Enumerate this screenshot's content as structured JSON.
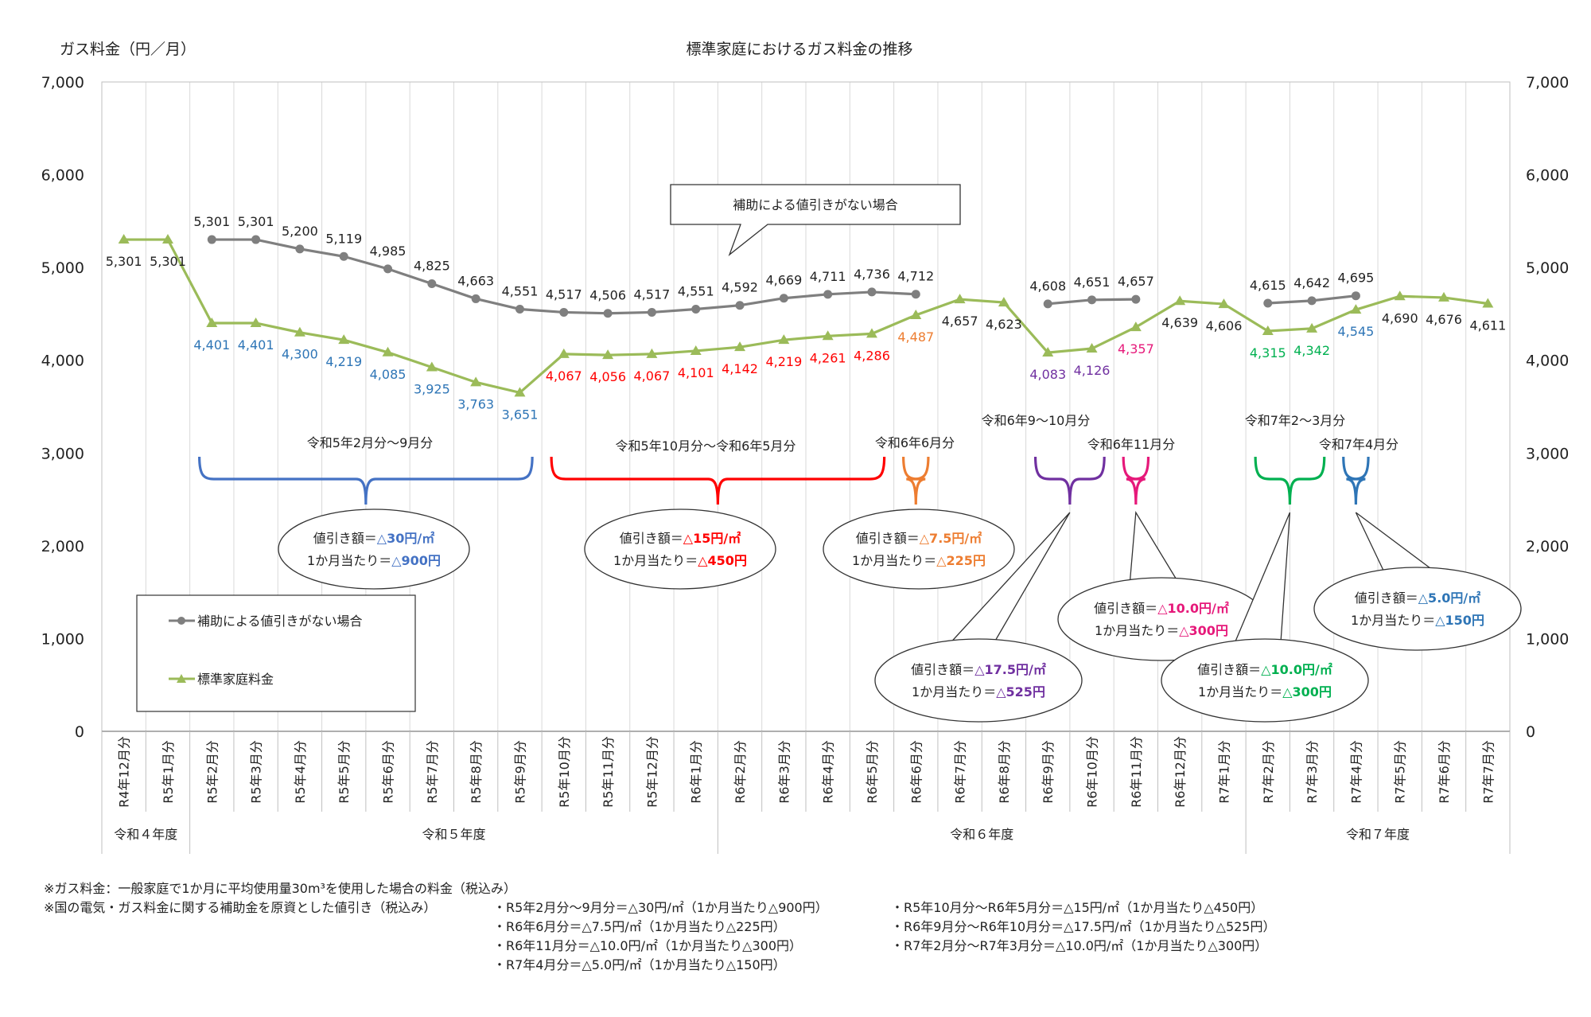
{
  "chart_data": {
    "type": "line",
    "title": "標準家庭におけるガス料金の推移",
    "ylabel": "ガス料金（円／月）",
    "ylim": [
      0,
      7000
    ],
    "yticks": [
      "0",
      "1,000",
      "2,000",
      "3,000",
      "4,000",
      "5,000",
      "6,000",
      "7,000"
    ],
    "categories": [
      "R4年12月分",
      "R5年1月分",
      "R5年2月分",
      "R5年3月分",
      "R5年4月分",
      "R5年5月分",
      "R5年6月分",
      "R5年7月分",
      "R5年8月分",
      "R5年9月分",
      "R5年10月分",
      "R5年11月分",
      "R5年12月分",
      "R6年1月分",
      "R6年2月分",
      "R6年3月分",
      "R6年4月分",
      "R6年5月分",
      "R6年6月分",
      "R6年7月分",
      "R6年8月分",
      "R6年9月分",
      "R6年10月分",
      "R6年11月分",
      "R6年12月分",
      "R7年1月分",
      "R7年2月分",
      "R7年3月分",
      "R7年4月分",
      "R7年5月分",
      "R7年6月分",
      "R7年7月分"
    ],
    "fiscal_years": [
      {
        "label": "令和４年度",
        "start": 0,
        "end": 1
      },
      {
        "label": "令和５年度",
        "start": 2,
        "end": 13
      },
      {
        "label": "令和６年度",
        "start": 14,
        "end": 25
      },
      {
        "label": "令和７年度",
        "start": 26,
        "end": 31
      }
    ],
    "series": [
      {
        "name": "補助による値引きがない場合",
        "color": "#7f7f7f",
        "values": [
          null,
          null,
          5301,
          5301,
          5200,
          5119,
          4985,
          4825,
          4663,
          4551,
          4517,
          4506,
          4517,
          4551,
          4592,
          4669,
          4711,
          4736,
          4712,
          null,
          null,
          4608,
          4651,
          4657,
          null,
          null,
          4615,
          4642,
          4695,
          null,
          null,
          null
        ],
        "labels": [
          null,
          null,
          "5,301",
          "5,301",
          "5,200",
          "5,119",
          "4,985",
          "4,825",
          "4,663",
          "4,551",
          "4,517",
          "4,506",
          "4,517",
          "4,551",
          "4,592",
          "4,669",
          "4,711",
          "4,736",
          "4,712",
          null,
          null,
          "4,608",
          "4,651",
          "4,657",
          null,
          null,
          "4,615",
          "4,642",
          "4,695",
          null,
          null,
          null
        ]
      },
      {
        "name": "標準家庭料金",
        "color": "#9bbb59",
        "values": [
          5301,
          5301,
          4401,
          4401,
          4300,
          4219,
          4085,
          3925,
          3763,
          3651,
          4067,
          4056,
          4067,
          4101,
          4142,
          4219,
          4261,
          4286,
          4487,
          4657,
          4623,
          4083,
          4126,
          4357,
          4639,
          4606,
          4315,
          4342,
          4545,
          4690,
          4676,
          4611
        ],
        "labels": [
          "5,301",
          "5,301",
          "4,401",
          "4,401",
          "4,300",
          "4,219",
          "4,085",
          "3,925",
          "3,763",
          "3,651",
          "4,067",
          "4,056",
          "4,067",
          "4,101",
          "4,142",
          "4,219",
          "4,261",
          "4,286",
          "4,487",
          "4,657",
          "4,623",
          "4,083",
          "4,126",
          "4,357",
          "4,639",
          "4,606",
          "4,315",
          "4,342",
          "4,545",
          "4,690",
          "4,676",
          "4,611"
        ],
        "label_colors": [
          "#222",
          "#222",
          "#2e75b6",
          "#2e75b6",
          "#2e75b6",
          "#2e75b6",
          "#2e75b6",
          "#2e75b6",
          "#2e75b6",
          "#2e75b6",
          "#ff0000",
          "#ff0000",
          "#ff0000",
          "#ff0000",
          "#ff0000",
          "#ff0000",
          "#ff0000",
          "#ff0000",
          "#ed7d31",
          "#222",
          "#222",
          "#7030a0",
          "#7030a0",
          "#e6197a",
          "#222",
          "#222",
          "#00b050",
          "#00b050",
          "#2e75b6",
          "#222",
          "#222",
          "#222"
        ]
      }
    ],
    "callout_no_subsidy": "補助による値引きがない場合",
    "periods": [
      {
        "label": "令和5年2月分～9月分",
        "color": "#4472c4",
        "from": 2,
        "to": 9,
        "rate_label": "値引き額＝",
        "rate": "△30円/㎡",
        "month_label": "1か月当たり＝",
        "month": "△900円"
      },
      {
        "label": "令和5年10月分～令和6年5月分",
        "color": "#ff0000",
        "from": 10,
        "to": 17,
        "rate_label": "値引き額＝",
        "rate": "△15円/㎡",
        "month_label": "1か月当たり＝",
        "month": "△450円"
      },
      {
        "label": "令和6年6月分",
        "color": "#ed7d31",
        "from": 18,
        "to": 18,
        "rate_label": "値引き額＝",
        "rate": "△7.5円/㎡",
        "month_label": "1か月当たり＝",
        "month": "△225円"
      },
      {
        "label": "令和6年9～10月分",
        "color": "#7030a0",
        "from": 21,
        "to": 22,
        "rate_label": "値引き額＝",
        "rate": "△17.5円/㎡",
        "month_label": "1か月当たり＝",
        "month": "△525円"
      },
      {
        "label": "令和6年11月分",
        "color": "#e6197a",
        "from": 23,
        "to": 23,
        "rate_label": "値引き額＝",
        "rate": "△10.0円/㎡",
        "month_label": "1か月当たり＝",
        "month": "△300円"
      },
      {
        "label": "令和7年2～3月分",
        "color": "#00b050",
        "from": 26,
        "to": 27,
        "rate_label": "値引き額＝",
        "rate": "△10.0円/㎡",
        "month_label": "1か月当たり＝",
        "month": "△300円"
      },
      {
        "label": "令和7年4月分",
        "color": "#2e75b6",
        "from": 28,
        "to": 28,
        "rate_label": "値引き額＝",
        "rate": "△5.0円/㎡",
        "month_label": "1か月当たり＝",
        "month": "△150円"
      }
    ]
  },
  "notes": {
    "line1": "※ガス料金：一般家庭で1か月に平均使用量30m³を使用した場合の料金（税込み）",
    "line2_head": "※国の電気・ガス料金に関する補助金を原資とした値引き（税込み）",
    "items": [
      "・R5年2月分～9月分＝△30円/㎡（1か月当たり△900円）",
      "・R5年10月分～R6年5月分＝△15円/㎡（1か月当たり△450円）",
      "・R6年6月分＝△7.5円/㎡（1か月当たり△225円）",
      "・R6年9月分～R6年10月分＝△17.5円/㎡（1か月当たり△525円）",
      "・R6年11月分＝△10.0円/㎡（1か月当たり△300円）",
      "・R7年2月分～R7年3月分＝△10.0円/㎡（1か月当たり△300円）",
      "・R7年4月分＝△5.0円/㎡（1か月当たり△150円）"
    ]
  }
}
